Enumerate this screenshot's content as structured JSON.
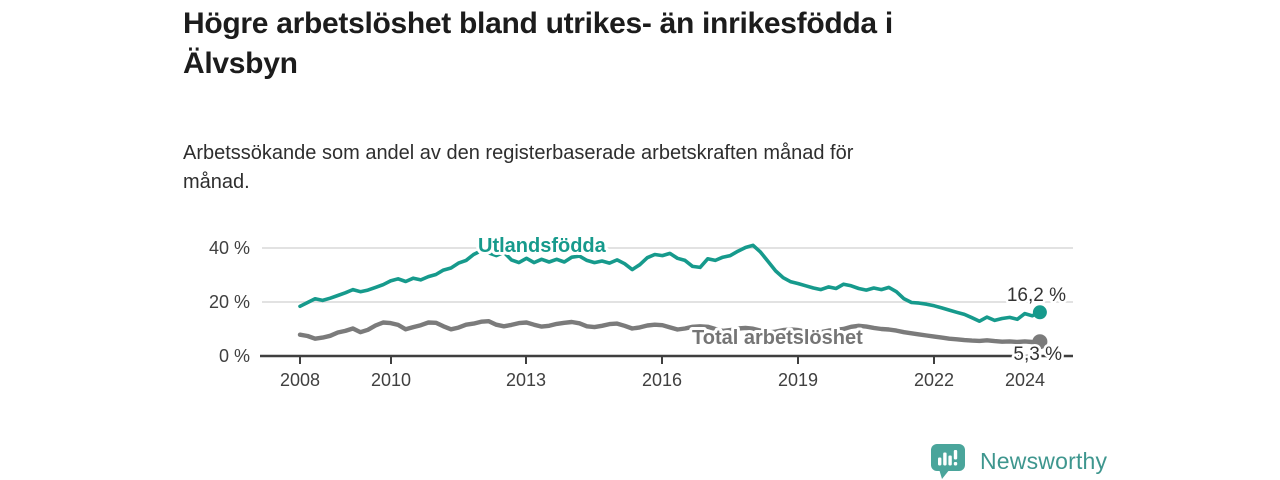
{
  "header": {
    "title": "Högre arbetslöshet bland utrikes- än inrikesfödda i Älvsbyn",
    "title_lines": [
      "Högre arbetslöshet bland utrikes- än inrikesfödda i",
      "Älvsbyn"
    ],
    "subtitle": "Arbetssökande som andel av den registerbaserade arbetskraften månad för månad.",
    "subtitle_lines": [
      "Arbetssökande som andel av den registerbaserade arbetskraften månad för",
      "månad."
    ]
  },
  "footer": {
    "logo_text": "Newsworthy",
    "logo_icon": "newsworthy-speech-bubble-bar-chart-icon",
    "logo_color": "#3e968e",
    "logo_icon_color": "#4aa59b"
  },
  "colors": {
    "accent_teal": "#169a8c",
    "line_gray": "#7b7b7b",
    "axis": "#3f3f3f",
    "gridline": "#d8d8d8",
    "end_label": "#333333"
  },
  "chart_data": {
    "type": "line",
    "title": "Högre arbetslöshet bland utrikes- än inrikesfödda i Älvsbyn",
    "subtitle": "Arbetssökande som andel av den registerbaserade arbetskraften månad för månad.",
    "unit": "%",
    "grid": "horizontal",
    "legend": "inline-labels",
    "x_axis": {
      "tick_labels": [
        "2008",
        "2010",
        "2013",
        "2016",
        "2019",
        "2022",
        "2024"
      ],
      "tick_years": [
        2008,
        2010,
        2013,
        2016,
        2019,
        2022,
        2024
      ],
      "range_years": [
        2008,
        2024.5
      ]
    },
    "y_axis": {
      "tick_labels": [
        "0 %",
        "20 %",
        "40 %"
      ],
      "ticks": [
        0,
        20,
        40
      ],
      "range": [
        0,
        44
      ]
    },
    "sampling": {
      "start_year": 2008,
      "points_per_year": 6
    },
    "series": [
      {
        "name": "Utlandsfödda",
        "color": "#169a8c",
        "end_value": 16.2,
        "end_label": "16,2 %",
        "values": [
          18.4,
          19.8,
          21.2,
          20.6,
          21.4,
          22.4,
          23.4,
          24.6,
          23.8,
          24.4,
          25.4,
          26.4,
          27.8,
          28.6,
          27.6,
          28.8,
          28.2,
          29.4,
          30.2,
          31.8,
          32.6,
          34.4,
          35.4,
          37.6,
          39.0,
          38.2,
          37.2,
          38.4,
          35.6,
          34.6,
          36.2,
          34.6,
          35.8,
          34.8,
          35.8,
          34.8,
          36.6,
          37.0,
          35.4,
          34.6,
          35.2,
          34.4,
          35.6,
          34.2,
          32.0,
          33.8,
          36.4,
          37.6,
          37.2,
          38.0,
          36.2,
          35.4,
          33.2,
          32.8,
          36.0,
          35.4,
          36.6,
          37.2,
          38.8,
          40.2,
          41.0,
          38.5,
          35.0,
          31.5,
          29.0,
          27.5,
          26.8,
          26.0,
          25.2,
          24.6,
          25.6,
          25.0,
          26.6,
          26.0,
          25.0,
          24.4,
          25.2,
          24.6,
          25.4,
          23.8,
          21.2,
          19.8,
          19.6,
          19.2,
          18.6,
          17.8,
          17.0,
          16.2,
          15.4,
          14.2,
          12.9,
          14.4,
          13.2,
          13.9,
          14.3,
          13.6,
          15.7,
          14.9,
          16.2
        ]
      },
      {
        "name": "Total arbetslöshet",
        "color": "#7b7b7b",
        "end_value": 5.3,
        "end_label": "5,3 %",
        "values": [
          7.9,
          7.4,
          6.4,
          6.8,
          7.5,
          8.7,
          9.3,
          10.2,
          8.8,
          9.7,
          11.3,
          12.4,
          12.2,
          11.5,
          9.9,
          10.7,
          11.4,
          12.4,
          12.3,
          11.0,
          9.9,
          10.5,
          11.6,
          12.0,
          12.7,
          12.9,
          11.6,
          11.0,
          11.5,
          12.2,
          12.4,
          11.6,
          10.9,
          11.2,
          11.9,
          12.3,
          12.6,
          12.1,
          11.0,
          10.7,
          11.2,
          11.8,
          12.0,
          11.2,
          10.2,
          10.6,
          11.3,
          11.6,
          11.4,
          10.6,
          9.8,
          10.2,
          10.8,
          11.0,
          10.8,
          10.0,
          9.3,
          9.6,
          10.2,
          10.4,
          10.1,
          9.4,
          8.7,
          9.0,
          9.6,
          9.8,
          9.6,
          9.0,
          8.4,
          8.8,
          9.4,
          9.7,
          10.0,
          10.8,
          11.2,
          10.9,
          10.4,
          10.0,
          9.8,
          9.4,
          8.8,
          8.4,
          8.0,
          7.6,
          7.2,
          6.8,
          6.4,
          6.2,
          5.9,
          5.7,
          5.6,
          5.8,
          5.5,
          5.3,
          5.4,
          5.2,
          5.4,
          5.2,
          5.3
        ]
      }
    ]
  }
}
